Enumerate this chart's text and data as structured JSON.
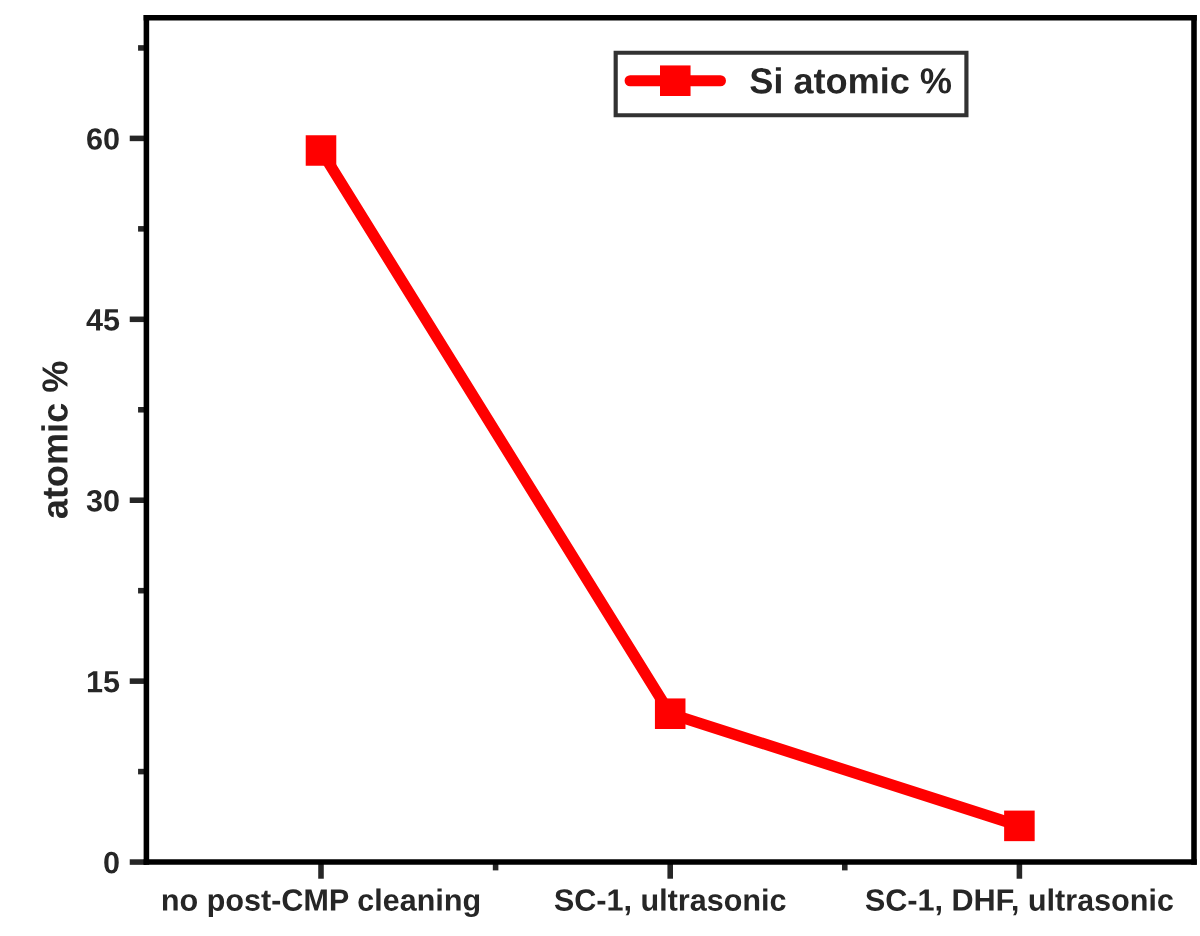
{
  "chart_data": {
    "type": "line",
    "ylabel": "atomic %",
    "categories": [
      "no post-CMP cleaning",
      "SC-1, ultrasonic",
      "SC-1, DHF, ultrasonic"
    ],
    "series": [
      {
        "name": "Si atomic %",
        "color": "#ff0000",
        "values": [
          59,
          12.3,
          3.0
        ]
      }
    ],
    "ylim": [
      0,
      70
    ],
    "yticks": [
      0,
      15,
      30,
      45,
      60
    ],
    "marker": "square",
    "line_style": "solid",
    "legend": "top right",
    "grid": false
  }
}
